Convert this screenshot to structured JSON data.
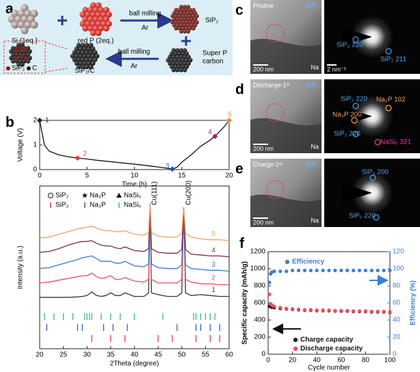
{
  "chart_data": [
    {
      "type": "line",
      "xlabel": "Time (h)",
      "ylabel": "Voltage (V)",
      "x": [
        0,
        0.2,
        0.5,
        1,
        2,
        3,
        4,
        5,
        6,
        8,
        10,
        12,
        13,
        14,
        14.5,
        15,
        16,
        17,
        18,
        18.5,
        19,
        19.5,
        20
      ],
      "series": [
        {
          "color": "#111111",
          "values": [
            2.0,
            1.6,
            1.0,
            0.75,
            0.6,
            0.52,
            0.47,
            0.43,
            0.38,
            0.3,
            0.22,
            0.13,
            0.08,
            0.02,
            0.1,
            0.3,
            0.6,
            0.95,
            1.2,
            1.35,
            1.55,
            1.75,
            2.0
          ]
        }
      ],
      "points": [
        {
          "x": 0,
          "y": 2.0,
          "label": "1",
          "color": "#222222"
        },
        {
          "x": 4,
          "y": 0.47,
          "label": "2",
          "color": "#e8383d"
        },
        {
          "x": 14,
          "y": 0.02,
          "label": "3",
          "color": "#2a4fb0"
        },
        {
          "x": 18.5,
          "y": 1.35,
          "label": "4",
          "color": "#a0284a"
        },
        {
          "x": 20,
          "y": 2.0,
          "label": "5",
          "color": "#f08a3c"
        }
      ],
      "xlim": [
        0,
        20
      ],
      "xticks": [
        0,
        5,
        10,
        15,
        20
      ],
      "ylim": [
        0,
        2
      ],
      "yticks": [
        0,
        1,
        2
      ]
    },
    {
      "type": "line",
      "xlabel": "2Theta (degree)",
      "ylabel": "Intensity (a.u.)",
      "x": [
        20,
        22,
        24,
        26,
        28,
        29,
        30,
        31,
        32,
        33,
        34,
        35,
        36,
        37,
        38,
        40,
        42,
        43,
        43.3,
        43.6,
        45,
        47,
        49,
        50,
        50.4,
        50.8,
        52,
        54,
        56,
        58,
        60
      ],
      "series": [
        {
          "name": "1",
          "color": "#333333",
          "values": [
            1.0,
            1.0,
            1.0,
            1.0,
            1.05,
            1.1,
            1.2,
            1.6,
            1.2,
            1.1,
            1.2,
            1.5,
            1.2,
            1.2,
            1.5,
            1.1,
            1.1,
            1.5,
            11.5,
            1.5,
            1.3,
            1.1,
            1.1,
            1.5,
            11,
            1.5,
            1.2,
            1.3,
            1.2,
            1.1,
            1.1
          ]
        },
        {
          "name": "2",
          "color": "#e8505b",
          "values": [
            2.6,
            2.7,
            2.9,
            3.1,
            3.3,
            3.4,
            3.4,
            3.7,
            3.3,
            3.1,
            3.2,
            3.4,
            3.0,
            3.0,
            3.2,
            2.8,
            2.7,
            3.0,
            11.5,
            3.0,
            2.6,
            2.6,
            2.6,
            3.0,
            11,
            3.0,
            2.7,
            2.5,
            2.5,
            2.4,
            2.4
          ]
        },
        {
          "name": "3",
          "color": "#3a78c8",
          "values": [
            4.2,
            4.3,
            4.6,
            4.9,
            5.2,
            5.4,
            5.5,
            5.6,
            5.3,
            5.0,
            5.0,
            5.0,
            4.8,
            4.8,
            5.0,
            4.5,
            4.4,
            4.7,
            11.5,
            4.7,
            4.3,
            4.2,
            4.2,
            4.6,
            11,
            4.6,
            4.2,
            4.1,
            4.0,
            4.0,
            3.9
          ]
        },
        {
          "name": "4",
          "color": "#7a2a4a",
          "values": [
            6.0,
            6.1,
            6.4,
            6.8,
            7.1,
            7.2,
            7.2,
            7.3,
            7.0,
            6.8,
            6.7,
            6.7,
            6.5,
            6.4,
            6.6,
            6.2,
            6.1,
            6.4,
            11.5,
            6.4,
            6.0,
            5.9,
            5.9,
            6.3,
            11,
            6.3,
            5.8,
            5.7,
            5.6,
            5.6,
            5.5
          ]
        },
        {
          "name": "5",
          "color": "#f0a060",
          "values": [
            7.6,
            7.7,
            8.0,
            8.3,
            8.6,
            8.7,
            8.8,
            8.9,
            8.7,
            8.5,
            8.4,
            8.4,
            8.3,
            8.3,
            8.4,
            8.0,
            7.9,
            8.2,
            11.5,
            8.2,
            7.8,
            7.7,
            7.7,
            8.1,
            11,
            8.1,
            7.7,
            7.5,
            7.4,
            7.4,
            7.3
          ]
        }
      ],
      "legend": [
        {
          "symbol": "circle",
          "label": "SiP₂"
        },
        {
          "symbol": "star",
          "label": "Na₃P"
        },
        {
          "symbol": "triangle",
          "label": "NaSi₆"
        }
      ],
      "references": [
        {
          "name": "SiP₂",
          "color": "#e8383d",
          "positions": [
            31,
            35,
            38,
            45,
            48,
            53,
            56,
            58
          ]
        },
        {
          "name": "Na₃P",
          "color": "#2a60c0",
          "positions": [
            21.5,
            28,
            29,
            33.5,
            35.5,
            38.5,
            49,
            53,
            54,
            56,
            58
          ]
        },
        {
          "name": "NaSi₆",
          "color": "#3cb878",
          "positions": [
            21,
            23,
            25,
            27,
            29.5,
            30,
            30.5,
            31,
            33,
            35,
            37,
            40,
            46,
            52.5,
            53,
            54,
            55,
            56,
            57
          ]
        }
      ],
      "annotations": [
        "Cu(111)",
        "Cu(200)"
      ],
      "xlim": [
        20,
        60
      ],
      "xticks": [
        20,
        25,
        30,
        35,
        40,
        45,
        50,
        55,
        60
      ],
      "ylim": [
        0,
        12
      ]
    },
    {
      "type": "scatter",
      "xlabel": "Cycle number",
      "ylabel": "Specific capacity (mAh/g)",
      "y2label": "Efficiency (%)",
      "x": [
        1,
        2,
        3,
        5,
        10,
        15,
        20,
        25,
        30,
        35,
        40,
        45,
        50,
        55,
        60,
        65,
        70,
        75,
        80,
        85,
        90,
        95,
        100
      ],
      "series": [
        {
          "name": "Efficiency",
          "color": "#3a7fd8",
          "axis": "y2",
          "values": [
            84,
            94,
            96,
            97,
            97,
            97,
            98,
            98,
            98,
            98,
            98,
            98,
            98,
            98,
            98,
            98,
            98,
            98,
            98,
            98,
            98,
            98,
            98
          ]
        },
        {
          "name": "Charge capacity",
          "color": "#222222",
          "values": [
            560,
            560,
            550,
            545,
            535,
            530,
            525,
            520,
            515,
            515,
            510,
            510,
            510,
            505,
            505,
            505,
            500,
            500,
            500,
            495,
            495,
            495,
            490
          ]
        },
        {
          "name": "Discharge capacity",
          "color": "#f04c5a",
          "values": [
            700,
            590,
            575,
            560,
            545,
            535,
            530,
            525,
            520,
            520,
            515,
            515,
            515,
            510,
            510,
            510,
            505,
            505,
            505,
            500,
            500,
            500,
            495
          ]
        }
      ],
      "xlim": [
        0,
        100
      ],
      "xticks": [
        0,
        20,
        40,
        60,
        80,
        100
      ],
      "ylim": [
        0,
        1200
      ],
      "yticks": [
        0,
        200,
        400,
        600,
        800,
        1000,
        1200
      ],
      "y2lim": [
        0,
        120
      ],
      "y2ticks": [
        0,
        20,
        40,
        60,
        80,
        100,
        120
      ]
    }
  ],
  "panels": {
    "a": {
      "label": "a",
      "si": "Si (1eq.)",
      "p": "red P (2eq.)",
      "mill1": "ball milling",
      "ar1": "Ar",
      "sip2": "SiP₂",
      "superp": "Super P",
      "carbon": "carbon",
      "mill2": "ball milling",
      "ar2": "Ar",
      "composite": "SiP₂/C",
      "legend_sip2": "SiP₂",
      "legend_c": "C"
    },
    "b": {
      "label": "b"
    },
    "c": {
      "label": "c",
      "state": "Pristine",
      "phase": "SiP₂",
      "scale": "200 nm",
      "na": "Na",
      "diff_scale": "2 nm⁻¹",
      "spots": [
        "SiP₂ 220",
        "SiP₂ 211"
      ]
    },
    "d": {
      "label": "d",
      "state": "Discharge-1ˢᵗ",
      "phase": "SiP₂",
      "scale": "200 nm",
      "na": "Na",
      "spots": [
        "SiP₂ 220",
        "Na₃P 102",
        "Na₃P 200",
        "SiP₂ 200",
        "NaSi₆ 321"
      ]
    },
    "e": {
      "label": "e",
      "state": "Charge-1ˢᵗ",
      "phase": "SiP₂",
      "scale": "200 nm",
      "na": "Na",
      "spots": [
        "SiP₂ 200",
        "SiP₂ 220"
      ]
    },
    "f": {
      "label": "f"
    }
  }
}
